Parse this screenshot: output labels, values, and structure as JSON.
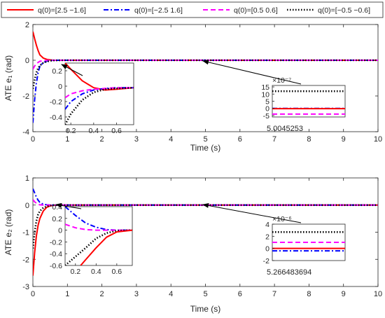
{
  "legend": {
    "position": "top",
    "entries": [
      {
        "label": "q(0)=[2.5 −1.6]",
        "color": "#ff0000",
        "dash": "solid"
      },
      {
        "label": "q(0)=[−2.5 1.6]",
        "color": "#0000ff",
        "dash": "dashdot"
      },
      {
        "label": "q(0)=[0.5 0.6]",
        "color": "#ff00ff",
        "dash": "dashed"
      },
      {
        "label": "q(0)=[−0.5 −0.6]",
        "color": "#000000",
        "dash": "dotted"
      }
    ]
  },
  "chart_data": [
    {
      "type": "line",
      "xlabel": "Time (s)",
      "ylabel": "ATE e₁ (rad)",
      "xlim": [
        0,
        10
      ],
      "ylim": [
        -4,
        2
      ],
      "xticks": [
        "0",
        "1",
        "2",
        "3",
        "4",
        "5",
        "6",
        "7",
        "8",
        "9",
        "10"
      ],
      "yticks": [
        "-4",
        "-2",
        "0",
        "2"
      ],
      "grid": false,
      "series": [
        {
          "name": "q(0)=[2.5 −1.6]",
          "color": "#ff0000",
          "x": [
            0,
            0.05,
            0.1,
            0.15,
            0.2,
            0.3,
            0.4,
            0.5,
            0.6,
            0.8,
            10
          ],
          "y": [
            1.6,
            1.2,
            0.85,
            0.55,
            0.3,
            0.12,
            0.05,
            0.02,
            0.0,
            0.0,
            0.0
          ]
        },
        {
          "name": "q(0)=[−2.5 1.6]",
          "color": "#0000ff",
          "x": [
            0,
            0.05,
            0.1,
            0.15,
            0.2,
            0.3,
            0.4,
            0.5,
            0.6,
            0.8,
            10
          ],
          "y": [
            -3.5,
            -2.2,
            -1.3,
            -0.7,
            -0.35,
            -0.12,
            -0.05,
            -0.02,
            0.0,
            0.0,
            0.0
          ]
        },
        {
          "name": "q(0)=[0.5 0.6]",
          "color": "#ff00ff",
          "x": [
            0,
            0.05,
            0.1,
            0.15,
            0.2,
            0.3,
            0.4,
            0.5,
            0.6,
            0.8,
            10
          ],
          "y": [
            -0.5,
            -0.32,
            -0.2,
            -0.12,
            -0.06,
            -0.03,
            -0.01,
            0.0,
            0.0,
            0.0,
            0.0
          ]
        },
        {
          "name": "q(0)=[−0.5 −0.6]",
          "color": "#000000",
          "x": [
            0,
            0.05,
            0.1,
            0.15,
            0.2,
            0.3,
            0.4,
            0.5,
            0.6,
            0.8,
            10
          ],
          "y": [
            -1.6,
            -1.1,
            -0.7,
            -0.45,
            -0.3,
            -0.15,
            -0.08,
            -0.03,
            -0.01,
            0.0,
            0.0
          ]
        }
      ],
      "insets": [
        {
          "xlim": [
            0.15,
            0.75
          ],
          "ylim": [
            -0.5,
            0.3
          ],
          "xticks": [
            "0.2",
            "0.4",
            "0.6"
          ],
          "yticks": [
            "0.2",
            "0",
            "-0.2",
            "-0.4"
          ],
          "series": [
            {
              "color": "#ff0000",
              "x": [
                0.15,
                0.2,
                0.3,
                0.4,
                0.5,
                0.6,
                0.75
              ],
              "y": [
                0.3,
                0.22,
                0.07,
                -0.02,
                -0.05,
                -0.04,
                -0.02
              ]
            },
            {
              "color": "#0000ff",
              "x": [
                0.15,
                0.2,
                0.3,
                0.4,
                0.5,
                0.6,
                0.75
              ],
              "y": [
                -0.3,
                -0.2,
                -0.1,
                -0.05,
                -0.03,
                -0.02,
                -0.02
              ]
            },
            {
              "color": "#ff00ff",
              "x": [
                0.15,
                0.2,
                0.3,
                0.4,
                0.5,
                0.6,
                0.75
              ],
              "y": [
                -0.15,
                -0.1,
                -0.06,
                -0.04,
                -0.03,
                -0.02,
                -0.02
              ]
            },
            {
              "color": "#000000",
              "x": [
                0.15,
                0.2,
                0.3,
                0.4,
                0.5,
                0.6,
                0.75
              ],
              "y": [
                -0.5,
                -0.36,
                -0.18,
                -0.08,
                -0.04,
                -0.03,
                -0.02
              ]
            }
          ]
        },
        {
          "xlim": [
            0,
            1
          ],
          "ylim": [
            -6e-07,
            1.6e-06
          ],
          "yticks": [
            "15",
            "10",
            "5",
            "0",
            "-5"
          ],
          "exponent": "×10⁻⁷",
          "xlabel": "5.0045253",
          "series": [
            {
              "color": "#000000",
              "y": 1.2e-06
            },
            {
              "color": "#0000ff",
              "y": 0.0
            },
            {
              "color": "#ff0000",
              "y": -2e-08
            },
            {
              "color": "#ff00ff",
              "y": -4e-07
            }
          ]
        }
      ]
    },
    {
      "type": "line",
      "xlabel": "Time (s)",
      "ylabel": "ATE e₂ (rad)",
      "xlim": [
        0,
        10
      ],
      "ylim": [
        -3,
        1
      ],
      "xticks": [
        "0",
        "1",
        "2",
        "3",
        "4",
        "5",
        "6",
        "7",
        "8",
        "9",
        "10"
      ],
      "yticks": [
        "-3",
        "-2",
        "-1",
        "0",
        "1"
      ],
      "grid": false,
      "series": [
        {
          "name": "q(0)=[2.5 −1.6]",
          "color": "#ff0000",
          "x": [
            0,
            0.05,
            0.1,
            0.15,
            0.2,
            0.3,
            0.4,
            0.5,
            0.6,
            0.8,
            10
          ],
          "y": [
            -2.6,
            -1.75,
            -1.15,
            -0.75,
            -0.5,
            -0.22,
            -0.08,
            -0.03,
            -0.01,
            0.0,
            0.0
          ]
        },
        {
          "name": "q(0)=[−2.5 1.6]",
          "color": "#0000ff",
          "x": [
            0,
            0.05,
            0.1,
            0.15,
            0.2,
            0.3,
            0.4,
            0.5,
            0.6,
            0.8,
            10
          ],
          "y": [
            0.6,
            0.45,
            0.3,
            0.18,
            0.1,
            0.03,
            0.01,
            0.0,
            0.0,
            0.0,
            0.0
          ]
        },
        {
          "name": "q(0)=[0.5 0.6]",
          "color": "#ff00ff",
          "x": [
            0,
            0.05,
            0.1,
            0.15,
            0.2,
            0.3,
            0.4,
            0.5,
            0.6,
            0.8,
            10
          ],
          "y": [
            0.2,
            0.12,
            0.07,
            0.03,
            0.01,
            0.0,
            0.0,
            0.0,
            0.0,
            0.0,
            0.0
          ]
        },
        {
          "name": "q(0)=[−0.5 −0.6]",
          "color": "#000000",
          "x": [
            0,
            0.05,
            0.1,
            0.15,
            0.2,
            0.3,
            0.4,
            0.5,
            0.6,
            0.8,
            10
          ],
          "y": [
            -1.6,
            -1.0,
            -0.6,
            -0.35,
            -0.22,
            -0.1,
            -0.05,
            -0.02,
            0.0,
            0.0,
            0.0
          ]
        }
      ],
      "insets": [
        {
          "xlim": [
            0.1,
            0.75
          ],
          "ylim": [
            -0.6,
            0.4
          ],
          "xticks": [
            "0.2",
            "0.4",
            "0.6"
          ],
          "yticks": [
            "0.4",
            "0.2",
            "0",
            "-0.2",
            "-0.4",
            "-0.6"
          ],
          "series": [
            {
              "color": "#0000ff",
              "x": [
                0.1,
                0.2,
                0.3,
                0.4,
                0.5,
                0.6,
                0.75
              ],
              "y": [
                0.4,
                0.25,
                0.12,
                0.05,
                0.01,
                0.0,
                0.0
              ]
            },
            {
              "color": "#ff00ff",
              "x": [
                0.1,
                0.2,
                0.3,
                0.4,
                0.5,
                0.6,
                0.75
              ],
              "y": [
                0.1,
                0.04,
                0.01,
                0.0,
                0.0,
                0.0,
                0.0
              ]
            },
            {
              "color": "#000000",
              "x": [
                0.1,
                0.2,
                0.3,
                0.4,
                0.5,
                0.6,
                0.75
              ],
              "y": [
                -0.6,
                -0.45,
                -0.3,
                -0.14,
                -0.05,
                -0.01,
                0.0
              ]
            },
            {
              "color": "#ff0000",
              "x": [
                0.25,
                0.3,
                0.4,
                0.5,
                0.6,
                0.75
              ],
              "y": [
                -0.6,
                -0.5,
                -0.3,
                -0.12,
                -0.03,
                0.0
              ]
            }
          ]
        },
        {
          "xlim": [
            0,
            1
          ],
          "ylim": [
            -2e-06,
            4e-06
          ],
          "yticks": [
            "4",
            "2",
            "0",
            "-2"
          ],
          "exponent": "×10⁻⁶",
          "xlabel": "5.266483694",
          "series": [
            {
              "color": "#000000",
              "y": 2.7e-06
            },
            {
              "color": "#ff00ff",
              "y": 1e-06
            },
            {
              "color": "#ff0000",
              "y": 0.0
            },
            {
              "color": "#0000ff",
              "y": -4e-07
            }
          ]
        }
      ]
    }
  ]
}
